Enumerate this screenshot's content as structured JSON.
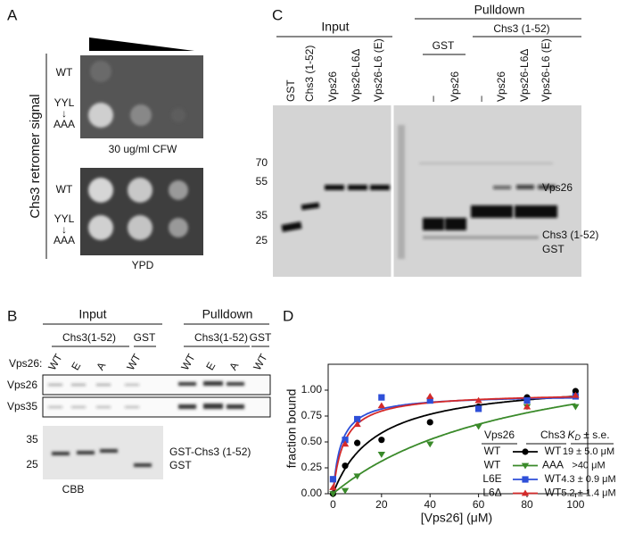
{
  "panel_a": {
    "label": "A",
    "side_label": "Chs3 retromer signal",
    "plates": [
      {
        "wt": "WT",
        "mut": [
          "YYL",
          "↓",
          "AAA"
        ],
        "caption": "30 ug/ml CFW"
      },
      {
        "wt": "WT",
        "mut": [
          "YYL",
          "↓",
          "AAA"
        ],
        "caption": "YPD"
      }
    ]
  },
  "panel_b": {
    "label": "B",
    "input": "Input",
    "pulldown": "Pulldown",
    "groups": [
      "Chs3(1-52)",
      "GST",
      "Chs3(1-52)",
      "GST"
    ],
    "lane_prefix": "Vps26:",
    "lanes": [
      "WT",
      "E",
      "A",
      "WT",
      "WT",
      "E",
      "A",
      "WT"
    ],
    "blots": [
      "Vps26",
      "Vps35"
    ],
    "markers": [
      35,
      25
    ],
    "bands": [
      "GST-Chs3 (1-52)",
      "GST"
    ],
    "stain": "CBB"
  },
  "panel_c": {
    "label": "C",
    "input": "Input",
    "pulldown": "Pulldown",
    "chs3_group": "Chs3 (1-52)",
    "gst_group": "GST",
    "lanes": [
      "GST",
      "Chs3 (1-52)",
      "Vps26",
      "Vps26-L6Δ",
      "Vps26-L6 (E)",
      "–",
      "Vps26",
      "–",
      "Vps26",
      "Vps26-L6Δ",
      "Vps26-L6 (E)"
    ],
    "markers": [
      70,
      55,
      35,
      25
    ],
    "bands": [
      "Vps26",
      "Chs3 (1-52)",
      "GST"
    ]
  },
  "chart_data": {
    "type": "scatter",
    "panel_label": "D",
    "x_label": "[Vps26] (μM)",
    "y_label": "fraction bound",
    "x": [
      0,
      5,
      10,
      20,
      40,
      60,
      80,
      100
    ],
    "series": [
      {
        "name": "WT",
        "chs3": "WT",
        "kd": "19 ± 5.0 μM",
        "marker": "circle",
        "color": "#000000",
        "values": [
          0,
          0.27,
          0.49,
          0.52,
          0.69,
          0.84,
          0.93,
          0.99
        ]
      },
      {
        "name": "WT",
        "chs3": "AAA",
        "kd": ">40  μM",
        "marker": "triangle-down",
        "color": "#3a8a2a",
        "values": [
          0,
          0.03,
          0.17,
          0.38,
          0.48,
          0.65,
          0.84,
          0.84
        ]
      },
      {
        "name": "L6E",
        "chs3": "WT",
        "kd": "4.3 ± 0.9 μM",
        "marker": "square",
        "color": "#2e4fd8",
        "values": [
          0.14,
          0.52,
          0.72,
          0.93,
          0.9,
          0.82,
          0.9,
          0.94
        ]
      },
      {
        "name": "L6Δ",
        "chs3": "WT",
        "kd": "5.2 ± 1.4 μM",
        "marker": "triangle-up",
        "color": "#d42a2a",
        "values": [
          0.06,
          0.48,
          0.67,
          0.85,
          0.94,
          0.9,
          0.84,
          0.95
        ]
      }
    ],
    "legend_header": {
      "vps26": "Vps26",
      "chs3": "Chs3",
      "kd_symbol": "K",
      "kd_subscript": "D",
      "kd_rest": " ± s.e."
    },
    "xlim": [
      -2,
      105
    ],
    "ylim": [
      0,
      1.25
    ],
    "xticks": [
      0,
      20,
      40,
      60,
      80,
      100
    ],
    "yticks": [
      {
        "value": 0,
        "label": "0.00"
      },
      {
        "value": 0.25,
        "label": "0.25"
      },
      {
        "value": 0.5,
        "label": "0.50"
      },
      {
        "value": 0.75,
        "label": "0.75"
      },
      {
        "value": 1,
        "label": "1.00"
      }
    ]
  }
}
